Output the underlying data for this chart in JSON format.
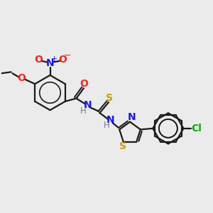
{
  "bg_color": "#ebebeb",
  "bond_color": "#1a1a1a",
  "N_color": "#1414ff",
  "O_color": "#ff2020",
  "S_color": "#c8a000",
  "Cl_color": "#00b000",
  "H_color": "#708090",
  "fig_width": 3.0,
  "fig_height": 3.0,
  "xlim": [
    0,
    10
  ],
  "ylim": [
    0,
    10
  ]
}
